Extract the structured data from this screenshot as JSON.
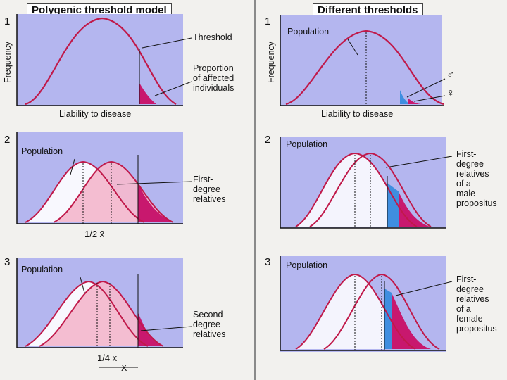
{
  "left_heading": "Polygenic threshold model",
  "right_heading": "Different thresholds",
  "panel_numbers": [
    "1",
    "2",
    "3"
  ],
  "y_axis_label": "Frequency",
  "x_axis_label": "Liability to disease",
  "labels": {
    "threshold": "Threshold",
    "proportion": [
      "Proportion",
      "of affected",
      "individuals"
    ],
    "population": "Population",
    "first_degree": [
      "First-",
      "degree",
      "relatives"
    ],
    "second_degree": [
      "Second-",
      "degree",
      "relatives"
    ],
    "half_x": "1/2 x̄",
    "quarter_x": "1/4 x̄",
    "x_mark": "X",
    "male_symbol": "♂",
    "female_symbol": "♀",
    "first_degree_male": [
      "First-",
      "degree",
      "relatives",
      "of a",
      "male",
      "propositus"
    ],
    "first_degree_female": [
      "First-",
      "degree",
      "relatives",
      "of a",
      "female",
      "propositus"
    ]
  },
  "colors": {
    "panel": "#b4b6ef",
    "curve": "#c0194a",
    "fill_pink": "#f3b9cf",
    "fill_magenta": "#c8186e",
    "fill_blue": "#3f8ee0"
  }
}
